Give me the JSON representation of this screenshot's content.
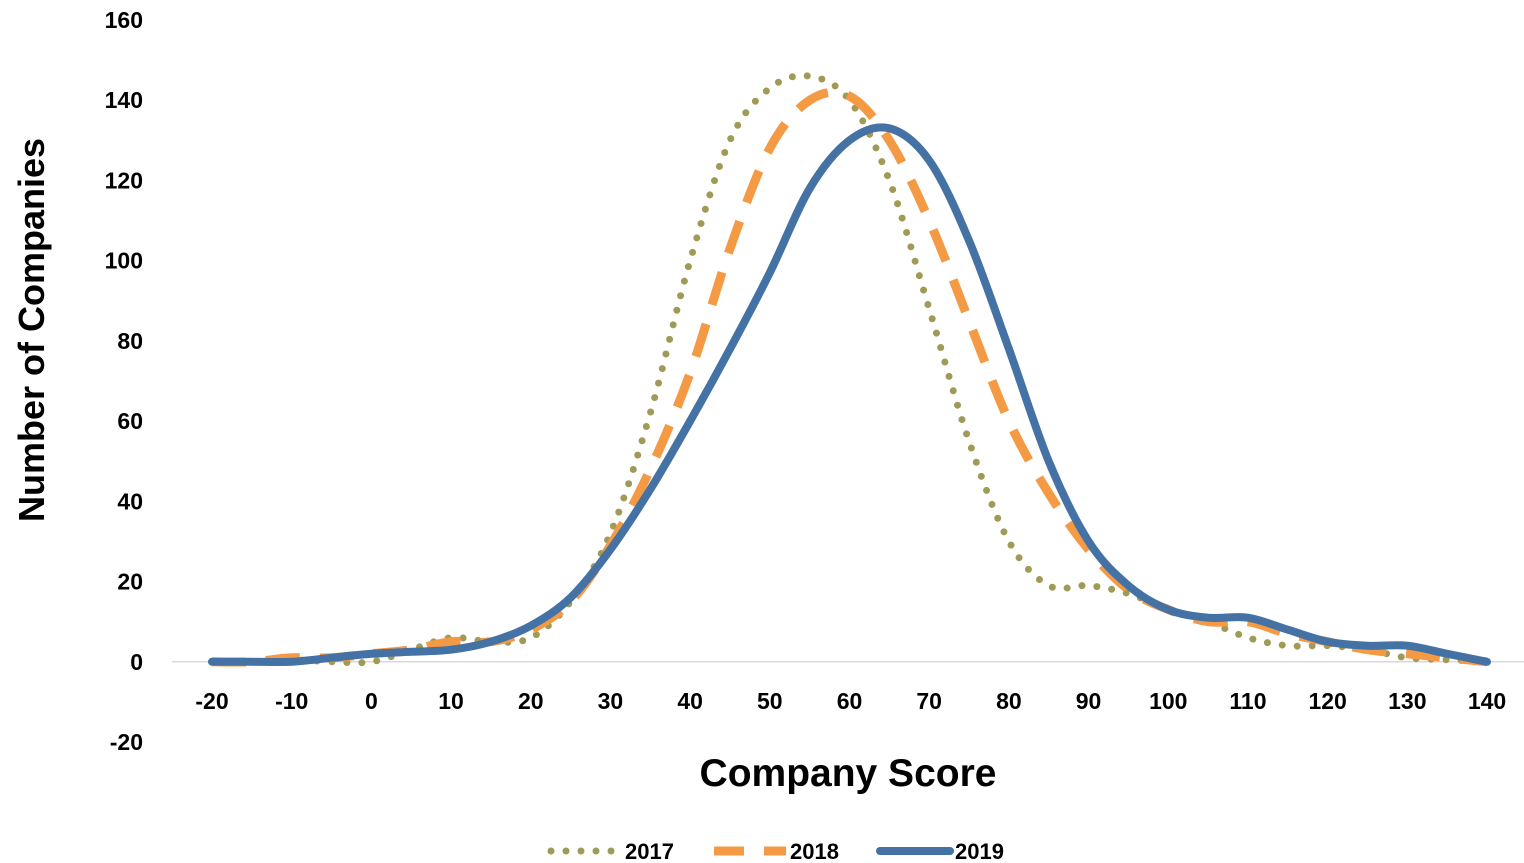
{
  "chart_data": {
    "type": "line",
    "title": "",
    "xlabel": "Company Score",
    "ylabel": "Number of Companies",
    "xlim": [
      -20,
      140
    ],
    "ylim": [
      -20,
      160
    ],
    "x_ticks": [
      -20,
      -10,
      0,
      10,
      20,
      30,
      40,
      50,
      60,
      70,
      80,
      90,
      100,
      110,
      120,
      130,
      140
    ],
    "y_ticks": [
      -20,
      0,
      20,
      40,
      60,
      80,
      100,
      120,
      140,
      160
    ],
    "grid": false,
    "smooth": true,
    "legend_position": "bottom",
    "series": [
      {
        "name": "2017",
        "style": "dotted",
        "color": "#A09A57",
        "points": [
          [
            -20,
            0
          ],
          [
            -15,
            0
          ],
          [
            -10,
            0.5
          ],
          [
            -5,
            0
          ],
          [
            0,
            0
          ],
          [
            5,
            3
          ],
          [
            10,
            6
          ],
          [
            15,
            5
          ],
          [
            20,
            6
          ],
          [
            25,
            15
          ],
          [
            30,
            32
          ],
          [
            35,
            62
          ],
          [
            40,
            100
          ],
          [
            45,
            130
          ],
          [
            50,
            143
          ],
          [
            55,
            146
          ],
          [
            60,
            140
          ],
          [
            65,
            120
          ],
          [
            70,
            88
          ],
          [
            75,
            55
          ],
          [
            80,
            30
          ],
          [
            85,
            19
          ],
          [
            90,
            19
          ],
          [
            95,
            17
          ],
          [
            100,
            13
          ],
          [
            105,
            10
          ],
          [
            110,
            6
          ],
          [
            115,
            4
          ],
          [
            120,
            4
          ],
          [
            125,
            3
          ],
          [
            130,
            1
          ],
          [
            135,
            0.5
          ],
          [
            140,
            0
          ]
        ]
      },
      {
        "name": "2018",
        "style": "dashed",
        "color": "#F59A44",
        "points": [
          [
            -20,
            0
          ],
          [
            -15,
            0
          ],
          [
            -10,
            1
          ],
          [
            -5,
            1
          ],
          [
            0,
            2
          ],
          [
            5,
            3
          ],
          [
            10,
            5
          ],
          [
            15,
            5
          ],
          [
            20,
            8
          ],
          [
            25,
            15
          ],
          [
            30,
            29
          ],
          [
            35,
            48
          ],
          [
            40,
            72
          ],
          [
            45,
            103
          ],
          [
            50,
            128
          ],
          [
            55,
            140
          ],
          [
            60,
            141
          ],
          [
            65,
            130
          ],
          [
            70,
            110
          ],
          [
            75,
            85
          ],
          [
            80,
            60
          ],
          [
            85,
            42
          ],
          [
            90,
            28
          ],
          [
            95,
            18
          ],
          [
            100,
            13
          ],
          [
            105,
            10
          ],
          [
            110,
            10
          ],
          [
            115,
            7
          ],
          [
            120,
            5
          ],
          [
            125,
            3
          ],
          [
            130,
            2
          ],
          [
            135,
            1
          ],
          [
            140,
            0
          ]
        ]
      },
      {
        "name": "2019",
        "style": "solid",
        "color": "#4472A4",
        "points": [
          [
            -20,
            0
          ],
          [
            -15,
            0
          ],
          [
            -10,
            0
          ],
          [
            -5,
            1
          ],
          [
            0,
            2
          ],
          [
            5,
            2.5
          ],
          [
            10,
            3
          ],
          [
            15,
            5
          ],
          [
            20,
            9
          ],
          [
            25,
            16
          ],
          [
            30,
            28
          ],
          [
            35,
            43
          ],
          [
            40,
            60
          ],
          [
            45,
            78
          ],
          [
            50,
            97
          ],
          [
            55,
            118
          ],
          [
            60,
            130
          ],
          [
            65,
            133
          ],
          [
            70,
            125
          ],
          [
            75,
            105
          ],
          [
            80,
            78
          ],
          [
            85,
            50
          ],
          [
            90,
            30
          ],
          [
            95,
            19
          ],
          [
            100,
            13
          ],
          [
            105,
            11
          ],
          [
            110,
            11
          ],
          [
            115,
            8
          ],
          [
            120,
            5
          ],
          [
            125,
            4
          ],
          [
            130,
            4
          ],
          [
            135,
            2
          ],
          [
            140,
            0
          ]
        ]
      }
    ]
  }
}
